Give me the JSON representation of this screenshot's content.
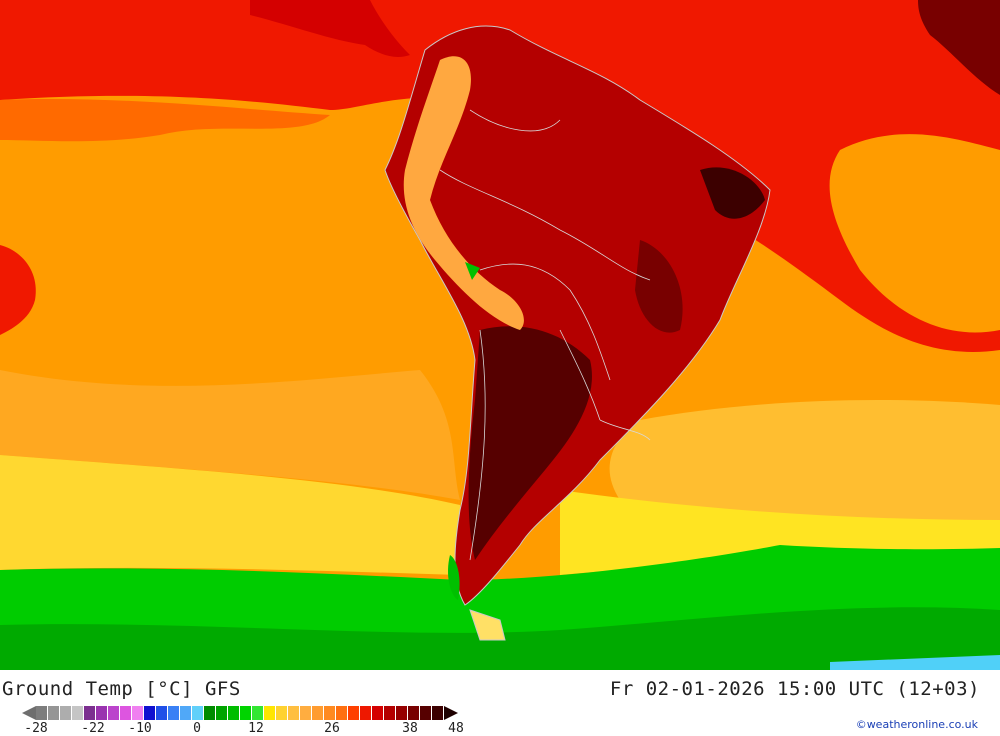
{
  "title": {
    "left": "Ground Temp [°C] GFS",
    "right": "Fr 02-01-2026 15:00 UTC (12+03)"
  },
  "legend": {
    "ticks": [
      "-28",
      "-22",
      "-10",
      "0",
      "12",
      "26",
      "38",
      "48"
    ],
    "colors": [
      "#7d7d7d",
      "#959595",
      "#adadad",
      "#c5c5c5",
      "#7c2f90",
      "#9a33b0",
      "#bb44cc",
      "#dd55e0",
      "#f080f0",
      "#1010d0",
      "#2050e8",
      "#3a80f5",
      "#50a8f8",
      "#60d0fa",
      "#008c00",
      "#00a400",
      "#00bd00",
      "#00d400",
      "#33e633",
      "#ffe600",
      "#ffd230",
      "#ffbf40",
      "#ffad40",
      "#ff9c30",
      "#ff8a20",
      "#ff7010",
      "#ff4000",
      "#ee1800",
      "#d40000",
      "#b40000",
      "#960000",
      "#780000",
      "#560000",
      "#3c0000"
    ]
  },
  "credit": "©weatheronline.co.uk",
  "colors": {
    "ocean_hot": "#f01800",
    "ocean_warm": "#ff9c00",
    "ocean_mild": "#ffcc33",
    "ocean_cool": "#ffee22",
    "ocean_cold": "#00c800",
    "land_hot": "#b40000",
    "land_extreme": "#4c0000",
    "andes": "#ffb347"
  }
}
